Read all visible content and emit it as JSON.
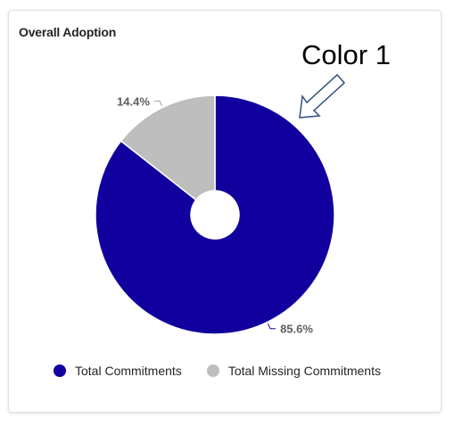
{
  "card": {
    "title": "Overall Adoption"
  },
  "annotation": {
    "text": "Color 1"
  },
  "chart_data": {
    "type": "pie",
    "title": "Overall Adoption",
    "donut": true,
    "series": [
      {
        "name": "Total Commitments",
        "value": 85.6,
        "label": "85.6%",
        "color": "#11009e"
      },
      {
        "name": "Total Missing Commitments",
        "value": 14.4,
        "label": "14.4%",
        "color": "#bebebe"
      }
    ],
    "legend_position": "bottom"
  }
}
